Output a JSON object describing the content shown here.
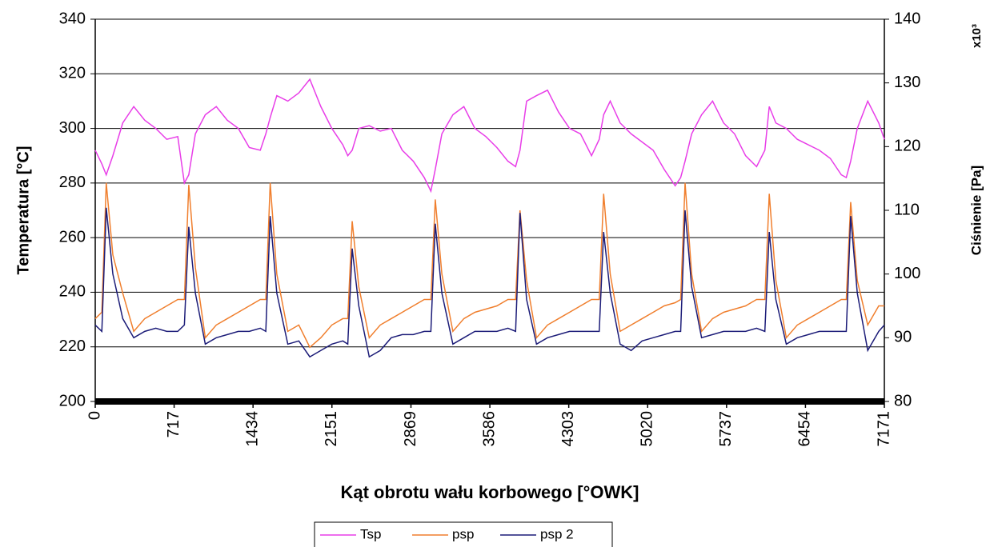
{
  "chart_data": {
    "type": "line",
    "y_label": "Temperatura [°C]",
    "y2_label": "Ciśnienie [Pa]",
    "y2_multiplier": "x10³",
    "x_label": "Kąt obrotu wału korbowego [°OWK]",
    "xlim": [
      0,
      7171
    ],
    "xticks": [
      0,
      717,
      1434,
      2151,
      2869,
      3586,
      4303,
      5020,
      5737,
      6454,
      7171
    ],
    "ylim": [
      200,
      340
    ],
    "yticks": [
      200,
      220,
      240,
      260,
      280,
      300,
      320,
      340
    ],
    "y2lim": [
      80,
      140
    ],
    "y2ticks": [
      80,
      90,
      100,
      110,
      120,
      130,
      140
    ],
    "grid": true,
    "legend": "bottom",
    "x": [
      0,
      60,
      100,
      160,
      250,
      350,
      450,
      550,
      650,
      750,
      810,
      850,
      910,
      1000,
      1100,
      1200,
      1300,
      1400,
      1500,
      1550,
      1590,
      1650,
      1750,
      1850,
      1950,
      2050,
      2150,
      2250,
      2295,
      2335,
      2395,
      2490,
      2590,
      2690,
      2790,
      2890,
      2990,
      3050,
      3090,
      3150,
      3250,
      3350,
      3450,
      3550,
      3650,
      3750,
      3820,
      3860,
      3920,
      4010,
      4110,
      4210,
      4310,
      4410,
      4510,
      4580,
      4620,
      4680,
      4770,
      4870,
      4970,
      5070,
      5170,
      5270,
      5320,
      5360,
      5420,
      5510,
      5610,
      5710,
      5810,
      5910,
      6010,
      6085,
      6125,
      6185,
      6280,
      6380,
      6480,
      6580,
      6680,
      6780,
      6825,
      6865,
      6925,
      7020,
      7120,
      7171
    ],
    "series": [
      {
        "name": "Tsp",
        "color": "#e83ee8",
        "values": [
          292,
          287,
          283,
          290,
          302,
          308,
          303,
          300,
          296,
          297,
          280,
          283,
          298,
          305,
          308,
          303,
          300,
          293,
          292,
          298,
          304,
          312,
          310,
          313,
          318,
          308,
          300,
          294,
          290,
          292,
          300,
          301,
          299,
          300,
          292,
          288,
          282,
          277,
          285,
          298,
          305,
          308,
          300,
          297,
          293,
          288,
          286,
          292,
          310,
          312,
          314,
          306,
          300,
          298,
          290,
          296,
          305,
          310,
          302,
          298,
          295,
          292,
          285,
          279,
          282,
          288,
          298,
          305,
          310,
          302,
          298,
          290,
          286,
          292,
          308,
          302,
          300,
          296,
          294,
          292,
          289,
          283,
          282,
          288,
          300,
          310,
          302,
          296
        ]
      },
      {
        "name": "psp",
        "color": "#f07f2e",
        "axis": "y2",
        "values": [
          93,
          94,
          114.3,
          103,
          97,
          91,
          93,
          94,
          95,
          96,
          96,
          114,
          101,
          90,
          92,
          93,
          94,
          95,
          96,
          96,
          114.3,
          100,
          91,
          92,
          88.5,
          90,
          92,
          93,
          93,
          108.3,
          98,
          90,
          92,
          93,
          94,
          95,
          96,
          96,
          111.7,
          100,
          91,
          93,
          94,
          94.5,
          95,
          96,
          96,
          110,
          99,
          90,
          92,
          93,
          94,
          95,
          96,
          96,
          112.6,
          100,
          91,
          92,
          93,
          94,
          95,
          95.5,
          96,
          114.3,
          100,
          91,
          93,
          94,
          94.5,
          95,
          96,
          96,
          112.6,
          99,
          90,
          92,
          93,
          94,
          95,
          96,
          96,
          111.3,
          99,
          92,
          95,
          95
        ]
      },
      {
        "name": "psp 2",
        "color": "#1c1c78",
        "axis": "y2",
        "values": [
          92,
          91,
          110.4,
          100,
          93,
          90,
          91,
          91.5,
          91,
          91,
          92,
          107.4,
          97,
          89,
          90,
          90.5,
          91,
          91,
          91.5,
          91,
          109.1,
          97,
          89,
          89.5,
          87,
          88,
          89,
          89.5,
          89,
          104,
          95,
          87,
          88,
          90,
          90.5,
          90.5,
          91,
          91,
          107.9,
          97,
          89,
          90,
          91,
          91,
          91,
          91.5,
          91,
          109.6,
          96,
          89,
          90,
          90.5,
          91,
          91,
          91,
          91,
          106.6,
          97,
          89,
          88,
          89.5,
          90,
          90.5,
          91,
          91,
          110,
          98,
          90,
          90.5,
          91,
          91,
          91,
          91.5,
          91,
          106.6,
          96,
          89,
          90,
          90.5,
          91,
          91,
          91,
          91,
          109.1,
          97,
          88,
          91,
          92
        ]
      }
    ]
  }
}
